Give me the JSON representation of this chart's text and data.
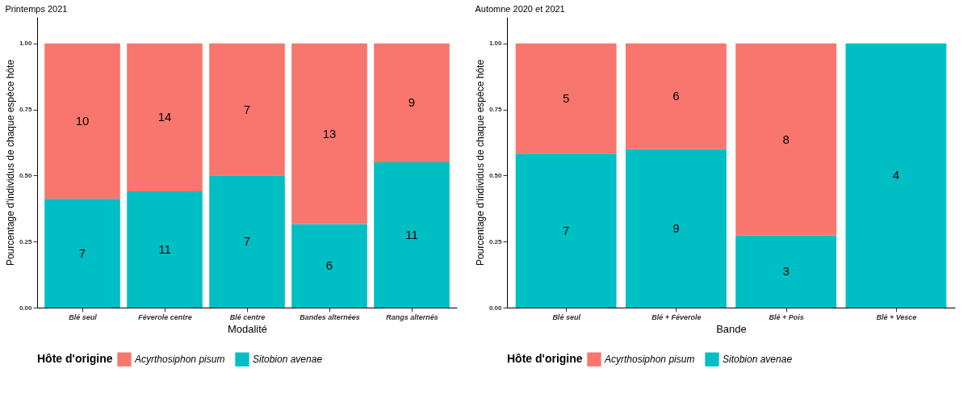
{
  "chart_data": [
    {
      "type": "bar",
      "stacked": true,
      "title": "Printemps 2021",
      "xlabel": "Modalité",
      "ylabel": "Pourcentage d'individus de chaque espèce hôte",
      "legend_title": "Hôte d'origine",
      "legend": "bottom",
      "grid": false,
      "categories": [
        "Blé seul",
        "Féverole centre",
        "Blé centre",
        "Bandes alternées",
        "Rangs alternés"
      ],
      "series": [
        {
          "name": "Sitobion avenae",
          "color": "#00bfc4",
          "values": [
            0.412,
            0.44,
            0.5,
            0.316,
            0.55
          ]
        },
        {
          "name": "Acyrthosiphon pisum",
          "color": "#f8766d",
          "values": [
            0.588,
            0.56,
            0.5,
            0.684,
            0.45
          ]
        }
      ],
      "annotations": [
        "7",
        "11",
        "7",
        "6",
        "11",
        "10",
        "14",
        "7",
        "13",
        "9"
      ],
      "ylim": [
        0,
        1.1
      ],
      "yticks": [
        {
          "value": 0,
          "label": "0.00"
        },
        {
          "value": 0.25,
          "label": "0.25"
        },
        {
          "value": 0.5,
          "label": "0.50"
        },
        {
          "value": 0.75,
          "label": "0.75"
        },
        {
          "value": 1,
          "label": "1.00"
        }
      ]
    },
    {
      "type": "bar",
      "stacked": true,
      "title": "Automne 2020 et 2021",
      "xlabel": "Bande",
      "ylabel": "Pourcentage d'individus de chaque espèce hôte",
      "legend_title": "Hôte d'origine",
      "legend": "bottom",
      "grid": false,
      "categories": [
        "Blé seul",
        "Blé + Féverole",
        "Blé + Pois",
        "Blé + Vesce"
      ],
      "series": [
        {
          "name": "Sitobion avenae",
          "color": "#00bfc4",
          "values": [
            0.583,
            0.6,
            0.273,
            1
          ]
        },
        {
          "name": "Acyrthosiphon pisum",
          "color": "#f8766d",
          "values": [
            0.417,
            0.4,
            0.727,
            0
          ]
        }
      ],
      "annotations": [
        "7",
        "9",
        "3",
        "4",
        "5",
        "6",
        "8"
      ],
      "ylim": [
        0,
        1.1
      ],
      "yticks": [
        {
          "value": 0,
          "label": "0.00"
        },
        {
          "value": 0.25,
          "label": "0.25"
        },
        {
          "value": 0.5,
          "label": "0.50"
        },
        {
          "value": 0.75,
          "label": "0.75"
        },
        {
          "value": 1,
          "label": "1.00"
        }
      ]
    }
  ]
}
